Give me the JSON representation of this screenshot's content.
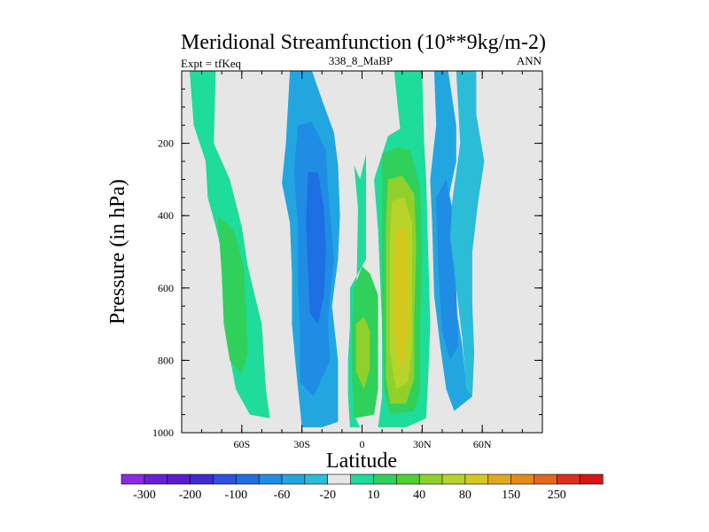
{
  "chart_data": {
    "type": "heatmap",
    "title": "Meridional Streamfunction (10**9kg/m-2)",
    "subtitle_left": "Expt = tfKeq",
    "subtitle_center": "338_8_MaBP",
    "subtitle_right": "ANN",
    "xlabel": "Latitude",
    "ylabel": "Pressure (in hPa)",
    "xlim": [
      -90,
      90
    ],
    "ylim": [
      1000,
      0
    ],
    "y_inverted": true,
    "x_ticks": [
      {
        "value": -60,
        "label": "60S"
      },
      {
        "value": -30,
        "label": "30S"
      },
      {
        "value": 0,
        "label": "0"
      },
      {
        "value": 30,
        "label": "30N"
      },
      {
        "value": 60,
        "label": "60N"
      }
    ],
    "y_ticks": [
      {
        "value": 200,
        "label": "200"
      },
      {
        "value": 400,
        "label": "400"
      },
      {
        "value": 600,
        "label": "600"
      },
      {
        "value": 800,
        "label": "800"
      },
      {
        "value": 1000,
        "label": "1000"
      }
    ],
    "background_color": "#e6e6e6",
    "colorbar": {
      "colors": [
        "#8a2be2",
        "#6a1fd6",
        "#5a1ad0",
        "#3f2ad6",
        "#2f52e0",
        "#1e6fe3",
        "#1f8de4",
        "#22a6e0",
        "#2bbcd8",
        "#e6e6e6",
        "#1edc9a",
        "#2fd15a",
        "#4cd22f",
        "#8fd12a",
        "#b8d42a",
        "#d7c81e",
        "#e2a81c",
        "#e58a18",
        "#e4661a",
        "#e02e1c",
        "#d81414"
      ],
      "labels": [
        {
          "index": 0.5,
          "text": "-300"
        },
        {
          "index": 2.5,
          "text": "-200"
        },
        {
          "index": 4.5,
          "text": "-100"
        },
        {
          "index": 6.5,
          "text": "-60"
        },
        {
          "index": 8.5,
          "text": "-20"
        },
        {
          "index": 10.5,
          "text": "10"
        },
        {
          "index": 12.5,
          "text": "40"
        },
        {
          "index": 14.5,
          "text": "80"
        },
        {
          "index": 16.5,
          "text": "150"
        },
        {
          "index": 18.5,
          "text": "250"
        }
      ]
    },
    "contour_regions": [
      {
        "color": "#1edc9a",
        "points": [
          [
            -86,
            0
          ],
          [
            -73,
            0
          ],
          [
            -74,
            200
          ],
          [
            -66,
            300
          ],
          [
            -60,
            430
          ],
          [
            -57,
            540
          ],
          [
            -50,
            700
          ],
          [
            -48,
            880
          ],
          [
            -46,
            960
          ],
          [
            -56,
            950
          ],
          [
            -63,
            880
          ],
          [
            -67,
            760
          ],
          [
            -69,
            620
          ],
          [
            -70,
            500
          ],
          [
            -73,
            430
          ],
          [
            -77,
            350
          ],
          [
            -78,
            250
          ],
          [
            -84,
            150
          ]
        ]
      },
      {
        "color": "#2fd15a",
        "points": [
          [
            -72,
            400
          ],
          [
            -64,
            440
          ],
          [
            -59,
            540
          ],
          [
            -58,
            650
          ],
          [
            -57,
            780
          ],
          [
            -60,
            840
          ],
          [
            -66,
            800
          ],
          [
            -69,
            700
          ],
          [
            -70,
            560
          ]
        ]
      },
      {
        "color": "#22a6e0",
        "points": [
          [
            -36,
            0
          ],
          [
            -25,
            0
          ],
          [
            -20,
            80
          ],
          [
            -14,
            170
          ],
          [
            -12,
            260
          ],
          [
            -11,
            400
          ],
          [
            -12,
            520
          ],
          [
            -15,
            650
          ],
          [
            -12,
            800
          ],
          [
            -12,
            970
          ],
          [
            -20,
            985
          ],
          [
            -30,
            985
          ],
          [
            -31,
            930
          ],
          [
            -33,
            820
          ],
          [
            -35,
            700
          ],
          [
            -35,
            560
          ],
          [
            -36,
            420
          ],
          [
            -40,
            310
          ],
          [
            -38,
            200
          ]
        ]
      },
      {
        "color": "#1f8de4",
        "points": [
          [
            -32,
            150
          ],
          [
            -25,
            140
          ],
          [
            -18,
            220
          ],
          [
            -17,
            330
          ],
          [
            -14,
            520
          ],
          [
            -17,
            680
          ],
          [
            -16,
            800
          ],
          [
            -24,
            900
          ],
          [
            -31,
            860
          ],
          [
            -31,
            720
          ],
          [
            -32,
            580
          ],
          [
            -32,
            420
          ],
          [
            -34,
            280
          ]
        ]
      },
      {
        "color": "#1e6fe3",
        "points": [
          [
            -27,
            280
          ],
          [
            -22,
            280
          ],
          [
            -19,
            380
          ],
          [
            -18,
            500
          ],
          [
            -19,
            620
          ],
          [
            -22,
            700
          ],
          [
            -26,
            670
          ],
          [
            -27,
            550
          ],
          [
            -28,
            420
          ]
        ]
      },
      {
        "color": "#1edc9a",
        "points": [
          [
            -4,
            950
          ],
          [
            -2,
            380
          ],
          [
            -4,
            260
          ],
          [
            -1,
            300
          ],
          [
            2,
            230
          ],
          [
            2,
            380
          ],
          [
            2,
            520
          ],
          [
            -6,
            600
          ],
          [
            -6,
            700
          ],
          [
            -7,
            800
          ],
          [
            -7,
            900
          ],
          [
            -6,
            985
          ],
          [
            8,
            985
          ],
          [
            10,
            900
          ],
          [
            10,
            700
          ],
          [
            8,
            440
          ],
          [
            6,
            300
          ],
          [
            13,
            180
          ],
          [
            19,
            160
          ],
          [
            16,
            0
          ],
          [
            30,
            0
          ],
          [
            31,
            200
          ],
          [
            32,
            300
          ],
          [
            33,
            500
          ],
          [
            34,
            700
          ],
          [
            33,
            850
          ],
          [
            32,
            960
          ],
          [
            22,
            985
          ],
          [
            12,
            985
          ],
          [
            6,
            985
          ],
          [
            -1,
            985
          ]
        ]
      },
      {
        "color": "#2fd15a",
        "points": [
          [
            -4,
            600
          ],
          [
            0,
            540
          ],
          [
            4,
            560
          ],
          [
            8,
            620
          ],
          [
            8,
            880
          ],
          [
            6,
            950
          ],
          [
            -4,
            960
          ],
          [
            -5,
            840
          ],
          [
            -5,
            700
          ]
        ]
      },
      {
        "color": "#2fd15a",
        "points": [
          [
            10,
            230
          ],
          [
            18,
            210
          ],
          [
            24,
            220
          ],
          [
            29,
            320
          ],
          [
            30,
            500
          ],
          [
            29,
            700
          ],
          [
            29,
            880
          ],
          [
            26,
            940
          ],
          [
            14,
            950
          ],
          [
            11,
            880
          ],
          [
            10,
            700
          ],
          [
            10,
            440
          ]
        ]
      },
      {
        "color": "#8fd12a",
        "points": [
          [
            -3,
            700
          ],
          [
            1,
            680
          ],
          [
            4,
            720
          ],
          [
            4,
            820
          ],
          [
            1,
            880
          ],
          [
            -3,
            830
          ]
        ]
      },
      {
        "color": "#8fd12a",
        "points": [
          [
            13,
            300
          ],
          [
            20,
            290
          ],
          [
            26,
            340
          ],
          [
            27,
            480
          ],
          [
            26,
            700
          ],
          [
            26,
            850
          ],
          [
            22,
            920
          ],
          [
            14,
            920
          ],
          [
            12,
            850
          ],
          [
            12,
            600
          ],
          [
            12,
            420
          ]
        ]
      },
      {
        "color": "#b8d42a",
        "points": [
          [
            15,
            360
          ],
          [
            21,
            350
          ],
          [
            25,
            420
          ],
          [
            25,
            600
          ],
          [
            25,
            760
          ],
          [
            23,
            860
          ],
          [
            17,
            880
          ],
          [
            14,
            780
          ],
          [
            14,
            600
          ],
          [
            14,
            450
          ]
        ]
      },
      {
        "color": "#d7c81e",
        "points": [
          [
            17,
            440
          ],
          [
            22,
            430
          ],
          [
            23,
            560
          ],
          [
            23,
            700
          ],
          [
            21,
            800
          ],
          [
            18,
            820
          ],
          [
            16,
            700
          ],
          [
            16,
            560
          ]
        ]
      },
      {
        "color": "#22a6e0",
        "points": [
          [
            36,
            0
          ],
          [
            43,
            0
          ],
          [
            47,
            150
          ],
          [
            47,
            250
          ],
          [
            42,
            380
          ],
          [
            43,
            450
          ],
          [
            46,
            620
          ],
          [
            50,
            760
          ],
          [
            52,
            870
          ],
          [
            55,
            900
          ],
          [
            46,
            940
          ],
          [
            42,
            880
          ],
          [
            39,
            760
          ],
          [
            36,
            620
          ],
          [
            35,
            420
          ],
          [
            34,
            300
          ],
          [
            37,
            150
          ]
        ]
      },
      {
        "color": "#1f8de4",
        "points": [
          [
            37,
            350
          ],
          [
            42,
            300
          ],
          [
            45,
            380
          ],
          [
            47,
            600
          ],
          [
            48,
            760
          ],
          [
            44,
            800
          ],
          [
            40,
            720
          ],
          [
            38,
            540
          ]
        ]
      },
      {
        "color": "#2bbcd8",
        "points": [
          [
            47,
            0
          ],
          [
            57,
            0
          ],
          [
            57,
            120
          ],
          [
            61,
            250
          ],
          [
            58,
            360
          ],
          [
            55,
            500
          ],
          [
            55,
            640
          ],
          [
            56,
            780
          ],
          [
            55,
            900
          ],
          [
            52,
            880
          ],
          [
            50,
            740
          ],
          [
            47,
            600
          ],
          [
            44,
            460
          ],
          [
            45,
            360
          ],
          [
            49,
            200
          ]
        ]
      }
    ]
  }
}
